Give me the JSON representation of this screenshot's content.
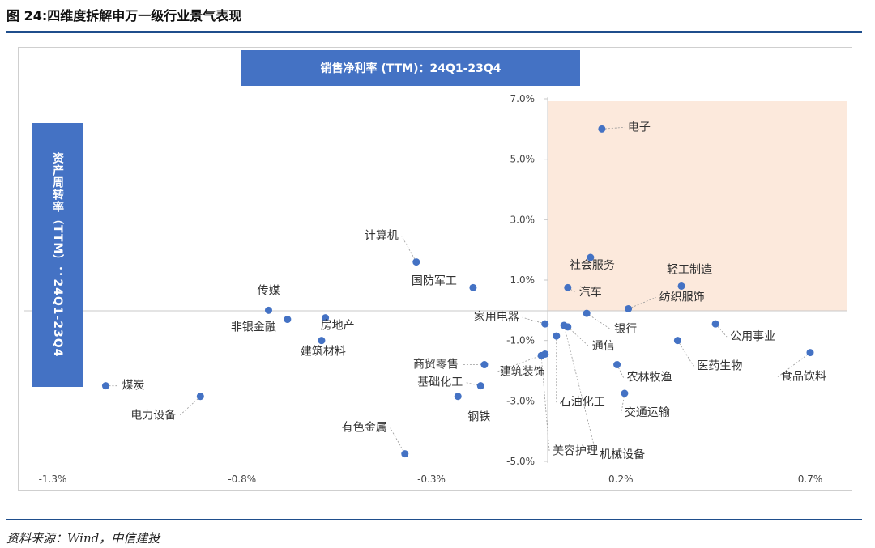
{
  "figure_title": "图 24:四维度拆解申万一级行业景气表现",
  "source": "资料来源：Wind，中信建投",
  "chart_data": {
    "type": "scatter",
    "xlabel": "销售净利率 (TTM)：24Q1-23Q4",
    "ylabel": "资产周转率（TTM）：24Q1-23Q4",
    "xlim": [
      -1.3,
      0.7
    ],
    "ylim": [
      -5.0,
      7.0
    ],
    "x_ticks": [
      "-1.3%",
      "-0.8%",
      "-0.3%",
      "0.2%",
      "0.7%"
    ],
    "x_tick_values": [
      -1.3,
      -0.8,
      -0.3,
      0.2,
      0.7
    ],
    "y_ticks": [
      "7.0%",
      "5.0%",
      "3.0%",
      "1.0%",
      "-1.0%",
      "-3.0%",
      "-5.0%"
    ],
    "y_tick_values": [
      7.0,
      5.0,
      3.0,
      1.0,
      -1.0,
      -3.0,
      -5.0
    ],
    "highlight_quadrant": "top-right",
    "highlight_color": "#fce9dc",
    "point_color": "#4472c4",
    "points": [
      {
        "label": "电子",
        "x": 0.15,
        "y": 6.0
      },
      {
        "label": "计算机",
        "x": -0.34,
        "y": 1.6
      },
      {
        "label": "社会服务",
        "x": 0.12,
        "y": 1.75
      },
      {
        "label": "轻工制造",
        "x": 0.36,
        "y": 0.8
      },
      {
        "label": "国防军工",
        "x": -0.19,
        "y": 0.75
      },
      {
        "label": "汽车",
        "x": 0.06,
        "y": 0.75
      },
      {
        "label": "纺织服饰",
        "x": 0.22,
        "y": 0.05
      },
      {
        "label": "传媒",
        "x": -0.73,
        "y": 0.0
      },
      {
        "label": "非银金融",
        "x": -0.68,
        "y": -0.3
      },
      {
        "label": "房地产",
        "x": -0.58,
        "y": -0.25
      },
      {
        "label": "家用电器",
        "x": 0.0,
        "y": -0.45
      },
      {
        "label": "银行",
        "x": 0.11,
        "y": -0.1
      },
      {
        "label": "通信",
        "x": 0.06,
        "y": -0.55
      },
      {
        "label": "建筑材料",
        "x": -0.59,
        "y": -1.0
      },
      {
        "label": "公用事业",
        "x": 0.45,
        "y": -0.45
      },
      {
        "label": "商贸零售",
        "x": -0.16,
        "y": -1.8
      },
      {
        "label": "医药生物",
        "x": 0.35,
        "y": -1.0
      },
      {
        "label": "建筑装饰",
        "x": 0.0,
        "y": -1.45
      },
      {
        "label": "食品饮料",
        "x": 0.7,
        "y": -1.4
      },
      {
        "label": "石油化工",
        "x": 0.03,
        "y": -0.85
      },
      {
        "label": "农林牧渔",
        "x": 0.19,
        "y": -1.8
      },
      {
        "label": "基础化工",
        "x": -0.17,
        "y": -2.5
      },
      {
        "label": "煤炭",
        "x": -1.16,
        "y": -2.5
      },
      {
        "label": "钢铁",
        "x": -0.23,
        "y": -2.85
      },
      {
        "label": "交通运输",
        "x": 0.21,
        "y": -2.75
      },
      {
        "label": "电力设备",
        "x": -0.91,
        "y": -2.85
      },
      {
        "label": "机械设备",
        "x": 0.05,
        "y": -0.5
      },
      {
        "label": "美容护理",
        "x": -0.01,
        "y": -1.5
      },
      {
        "label": "有色金属",
        "x": -0.37,
        "y": -4.75
      }
    ]
  }
}
